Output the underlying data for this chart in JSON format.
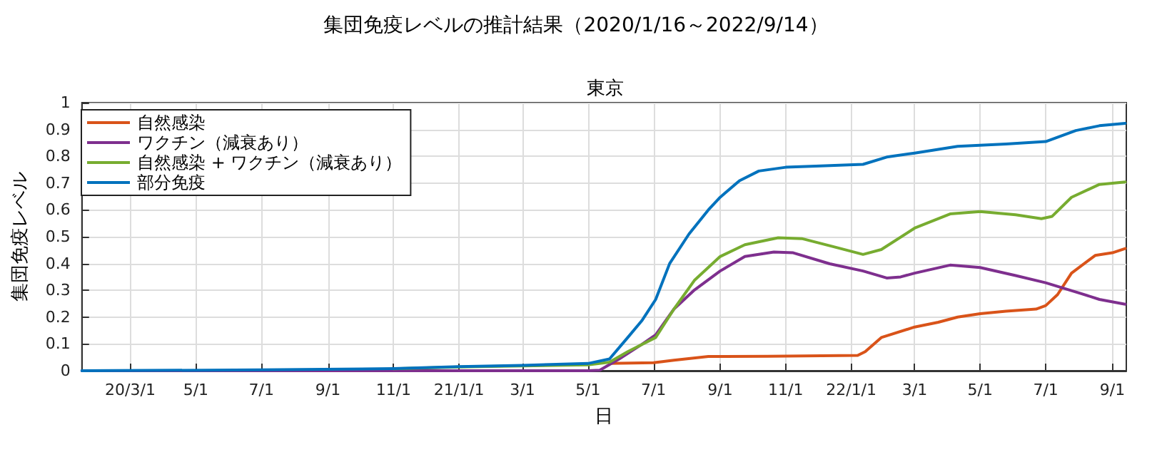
{
  "chart_data": {
    "type": "line",
    "title": "集団免疫レベルの推計結果（2020/1/16～2022/9/14）",
    "subtitle": "東京",
    "xlabel": "日",
    "ylabel": "集団免疫レベル",
    "xlim": [
      "2020-01-16",
      "2022-09-14"
    ],
    "xticks": [
      {
        "value": "2020-03-01",
        "label": "20/3/1"
      },
      {
        "value": "2020-05-01",
        "label": "5/1"
      },
      {
        "value": "2020-07-01",
        "label": "7/1"
      },
      {
        "value": "2020-09-01",
        "label": "9/1"
      },
      {
        "value": "2020-11-01",
        "label": "11/1"
      },
      {
        "value": "2021-01-01",
        "label": "21/1/1"
      },
      {
        "value": "2021-03-01",
        "label": "3/1"
      },
      {
        "value": "2021-05-01",
        "label": "5/1"
      },
      {
        "value": "2021-07-01",
        "label": "7/1"
      },
      {
        "value": "2021-09-01",
        "label": "9/1"
      },
      {
        "value": "2021-11-01",
        "label": "11/1"
      },
      {
        "value": "2022-01-01",
        "label": "22/1/1"
      },
      {
        "value": "2022-03-01",
        "label": "3/1"
      },
      {
        "value": "2022-05-01",
        "label": "5/1"
      },
      {
        "value": "2022-07-01",
        "label": "7/1"
      },
      {
        "value": "2022-09-01",
        "label": "9/1"
      }
    ],
    "ylim": [
      0,
      1
    ],
    "yticks": [
      0,
      0.1,
      0.2,
      0.3,
      0.4,
      0.5,
      0.6,
      0.7,
      0.8,
      0.9,
      1
    ],
    "grid": true,
    "legend": "top left",
    "series": [
      {
        "name": "自然感染",
        "color": "#d95319",
        "x": [
          "2021-05-21",
          "2021-07-01",
          "2021-07-20",
          "2021-08-21",
          "2021-10-15",
          "2022-01-07",
          "2022-01-14",
          "2022-01-29",
          "2022-03-01",
          "2022-03-23",
          "2022-04-10",
          "2022-05-01",
          "2022-05-25",
          "2022-06-22",
          "2022-07-01",
          "2022-07-12",
          "2022-07-25",
          "2022-08-16",
          "2022-09-01",
          "2022-09-13"
        ],
        "values": [
          0.027,
          0.03,
          0.039,
          0.053,
          0.054,
          0.057,
          0.071,
          0.124,
          0.163,
          0.181,
          0.2,
          0.213,
          0.222,
          0.23,
          0.243,
          0.284,
          0.364,
          0.43,
          0.44,
          0.456
        ]
      },
      {
        "name": "ワクチン（減衰あり）",
        "color": "#7e2f8e",
        "x": [
          "2020-01-16",
          "2021-05-01",
          "2021-05-12",
          "2021-05-30",
          "2021-06-20",
          "2021-07-03",
          "2021-07-20",
          "2021-08-08",
          "2021-09-01",
          "2021-09-24",
          "2021-10-21",
          "2021-11-08",
          "2021-12-12",
          "2022-01-12",
          "2022-02-03",
          "2022-02-16",
          "2022-03-01",
          "2022-04-03",
          "2022-05-01",
          "2022-06-03",
          "2022-07-01",
          "2022-08-02",
          "2022-08-20",
          "2022-09-13"
        ],
        "values": [
          0,
          0,
          0.002,
          0.044,
          0.098,
          0.134,
          0.23,
          0.301,
          0.372,
          0.426,
          0.443,
          0.44,
          0.399,
          0.372,
          0.346,
          0.35,
          0.364,
          0.394,
          0.385,
          0.355,
          0.328,
          0.289,
          0.266,
          0.248
        ]
      },
      {
        "name": "自然感染 + ワクチン（減衰あり）",
        "color": "#77ac30",
        "x": [
          "2020-11-01",
          "2021-01-01",
          "2021-03-01",
          "2021-05-01",
          "2021-05-21",
          "2021-06-07",
          "2021-07-03",
          "2021-07-20",
          "2021-08-08",
          "2021-09-01",
          "2021-09-24",
          "2021-10-25",
          "2021-11-16",
          "2021-12-17",
          "2022-01-12",
          "2022-01-29",
          "2022-03-01",
          "2022-04-03",
          "2022-05-01",
          "2022-06-03",
          "2022-06-27",
          "2022-07-07",
          "2022-07-25",
          "2022-08-20",
          "2022-09-13"
        ],
        "values": [
          0.007,
          0.014,
          0.018,
          0.022,
          0.032,
          0.071,
          0.124,
          0.23,
          0.337,
          0.426,
          0.47,
          0.496,
          0.493,
          0.461,
          0.434,
          0.452,
          0.532,
          0.585,
          0.594,
          0.582,
          0.567,
          0.576,
          0.647,
          0.695,
          0.704
        ]
      },
      {
        "name": "部分免疫",
        "color": "#0072bd",
        "x": [
          "2020-01-16",
          "2020-07-01",
          "2020-11-01",
          "2021-01-01",
          "2021-03-01",
          "2021-05-01",
          "2021-05-21",
          "2021-06-07",
          "2021-06-20",
          "2021-07-03",
          "2021-07-16",
          "2021-08-03",
          "2021-08-21",
          "2021-09-01",
          "2021-09-19",
          "2021-10-07",
          "2021-11-01",
          "2021-11-29",
          "2022-01-12",
          "2022-02-03",
          "2022-03-01",
          "2022-04-10",
          "2022-05-25",
          "2022-07-01",
          "2022-07-29",
          "2022-08-20",
          "2022-09-13"
        ],
        "values": [
          0,
          0.003,
          0.008,
          0.015,
          0.02,
          0.027,
          0.044,
          0.124,
          0.186,
          0.266,
          0.4,
          0.51,
          0.6,
          0.647,
          0.709,
          0.745,
          0.759,
          0.763,
          0.77,
          0.797,
          0.812,
          0.837,
          0.846,
          0.855,
          0.896,
          0.914,
          0.923
        ]
      }
    ]
  }
}
